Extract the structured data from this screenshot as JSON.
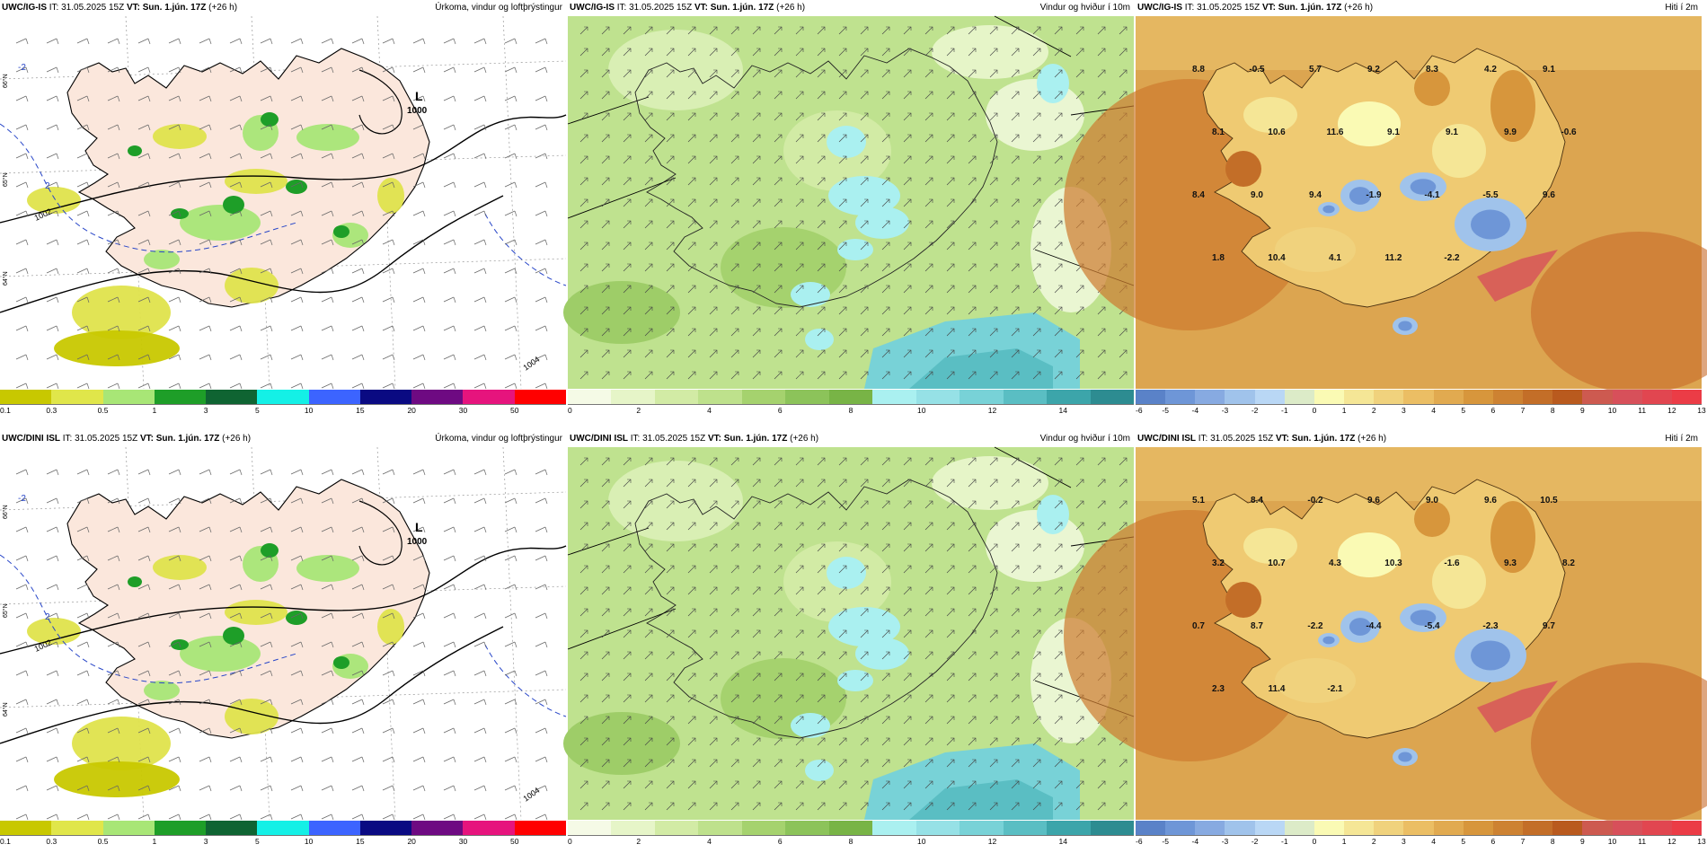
{
  "top": {
    "precip": {
      "model": "UWC/IG-IS",
      "it": "IT: 31.05.2025 15Z",
      "vt": "VT: Sun. 1.jún. 17Z",
      "lead": "(+26 h)",
      "title": "Úrkoma, vindur og loftþrýstingur"
    },
    "wind": {
      "model": "UWC/IG-IS",
      "it": "IT: 31.05.2025 15Z",
      "vt": "VT: Sun. 1.jún. 17Z",
      "lead": "(+26 h)",
      "title": "Vindur og hviður í 10m"
    },
    "temp": {
      "model": "UWC/IG-IS",
      "it": "IT: 31.05.2025 15Z",
      "vt": "VT: Sun. 1.jún. 17Z",
      "lead": "(+26 h)",
      "title": "Hiti í 2m"
    }
  },
  "bottom": {
    "precip": {
      "model": "UWC/DINI ISL",
      "it": "IT: 31.05.2025 15Z",
      "vt": "VT: Sun. 1.jún. 17Z",
      "lead": "(+26 h)",
      "title": "Úrkoma, vindur og loftþrýstingur"
    },
    "wind": {
      "model": "UWC/DINI ISL",
      "it": "IT: 31.05.2025 15Z",
      "vt": "VT: Sun. 1.jún. 17Z",
      "lead": "(+26 h)",
      "title": "Vindur og hviður í 10m"
    },
    "temp": {
      "model": "UWC/DINI ISL",
      "it": "IT: 31.05.2025 15Z",
      "vt": "VT: Sun. 1.jún. 17Z",
      "lead": "(+26 h)",
      "title": "Hiti í 2m"
    }
  },
  "legends": {
    "precip": {
      "colors": [
        "#c8c800",
        "#e0e64a",
        "#a8e676",
        "#1e9e28",
        "#0f6432",
        "#14f0e6",
        "#3c64ff",
        "#0a0a82",
        "#6e0a82",
        "#e6147d",
        "#ff0000"
      ],
      "labels": [
        "0.1",
        "0.3",
        "0.5",
        "1",
        "3",
        "5",
        "10",
        "15",
        "20",
        "30",
        "50"
      ]
    },
    "wind": {
      "colors": [
        "#f5fae6",
        "#e6f5c8",
        "#d2eba5",
        "#bee18c",
        "#a5d26e",
        "#8cc35a",
        "#78b446",
        "#aaf0f0",
        "#96e1e6",
        "#78d2d7",
        "#5abec3",
        "#3ca5aa",
        "#2d8c91"
      ],
      "labels": [
        "0",
        "2",
        "4",
        "6",
        "8",
        "10",
        "12",
        "14"
      ]
    },
    "temp": {
      "colors": [
        "#5a82c8",
        "#6e96d7",
        "#87aae1",
        "#a0c3eb",
        "#b9d7f5",
        "#dcebc8",
        "#fafab4",
        "#f5e696",
        "#f0d27d",
        "#ebbe64",
        "#e1aa50",
        "#d7963c",
        "#cd8232",
        "#c36e28",
        "#b95a1e",
        "#cd5a50",
        "#d7505a",
        "#e14650",
        "#eb3c46"
      ],
      "labels": [
        "-6",
        "-5",
        "-4",
        "-3",
        "-2",
        "-1",
        "0",
        "1",
        "2",
        "3",
        "4",
        "5",
        "6",
        "7",
        "8",
        "9",
        "10",
        "11",
        "12",
        "13"
      ]
    }
  },
  "maps": {
    "pressure_labels": [
      "L",
      "1000",
      "1002",
      "1004",
      "-2",
      "2"
    ],
    "lat_labels": [
      "66°N",
      "65°N",
      "64°N"
    ],
    "top_temp_values": [
      "8.8",
      "-0.5",
      "5.7",
      "9.2",
      "8.3",
      "4.2",
      "9.1",
      "8.1",
      "10.6",
      "11.6",
      "9.1",
      "9.1",
      "9.9",
      "-0.6",
      "8.4",
      "9.0",
      "9.4",
      "-1.9",
      "-4.1",
      "-5.5",
      "9.6",
      "1.8",
      "10.4",
      "4.1",
      "11.2",
      "-2.2"
    ],
    "bottom_temp_values": [
      "5.1",
      "8.4",
      "-0.2",
      "9.6",
      "9.0",
      "9.6",
      "10.5",
      "3.2",
      "10.7",
      "4.3",
      "10.3",
      "-1.6",
      "9.3",
      "8.2",
      "0.7",
      "8.7",
      "-2.2",
      "-4.4",
      "-5.4",
      "-2.3",
      "9.7",
      "2.3",
      "11.4",
      "-2.1"
    ]
  }
}
